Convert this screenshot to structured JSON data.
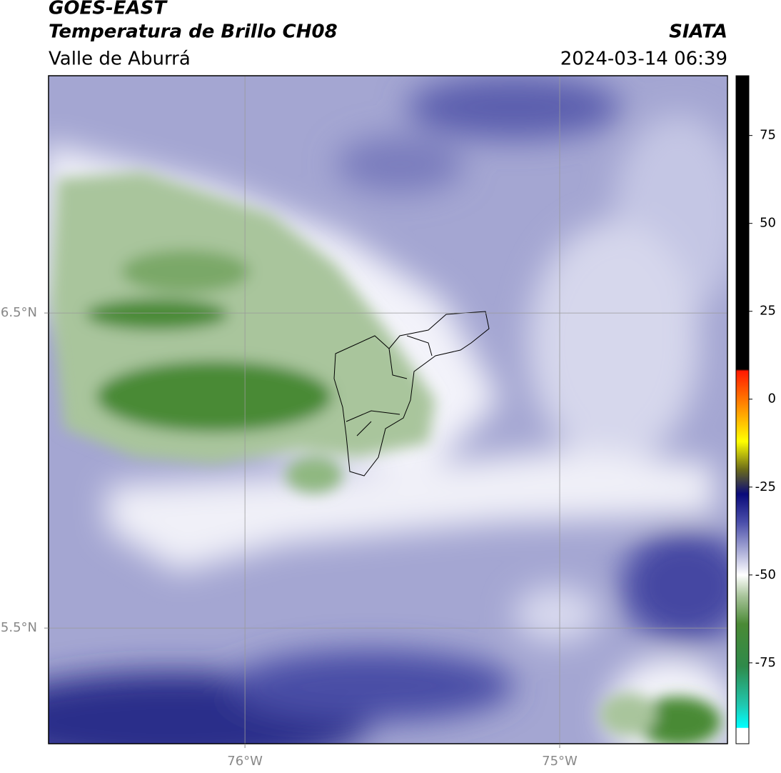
{
  "header": {
    "title": "GOES-EAST",
    "subtitle": "Temperatura de Brillo CH08",
    "region": "Valle de Aburrá",
    "source": "SIATA",
    "timestamp": "2024-03-14 06:39"
  },
  "map": {
    "xlim": [
      -76.624,
      -74.467
    ],
    "ylim": [
      5.133,
      7.253
    ],
    "xticks": [
      {
        "value": -76,
        "label": "76°W"
      },
      {
        "value": -75,
        "label": "75°W"
      }
    ],
    "yticks": [
      {
        "value": 6.5,
        "label": "6.5°N"
      },
      {
        "value": 5.5,
        "label": "5.5°N"
      }
    ],
    "grid": true
  },
  "colorbar": {
    "clim": [
      -98,
      92
    ],
    "ticks": [
      75,
      50,
      25,
      0,
      -25,
      -50,
      -75
    ],
    "colormap": [
      {
        "value": 92,
        "color": "#000000"
      },
      {
        "value": 8.5,
        "color": "#000000"
      },
      {
        "value": 8,
        "color": "#ff1a00"
      },
      {
        "value": -2,
        "color": "#ff8c00"
      },
      {
        "value": -12,
        "color": "#ffff00"
      },
      {
        "value": -20,
        "color": "#6b6b1a"
      },
      {
        "value": -27,
        "color": "#0a0a7a"
      },
      {
        "value": -35,
        "color": "#4a4eaa"
      },
      {
        "value": -44,
        "color": "#b4b6dc"
      },
      {
        "value": -50,
        "color": "#ffffff"
      },
      {
        "value": -56,
        "color": "#a8c49a"
      },
      {
        "value": -64,
        "color": "#4a8a35"
      },
      {
        "value": -76,
        "color": "#2f8a4a"
      },
      {
        "value": -87,
        "color": "#20c8b0"
      },
      {
        "value": -93.4,
        "color": "#00ffff"
      },
      {
        "value": -93.6,
        "color": "#ffffff"
      },
      {
        "value": -98,
        "color": "#ffffff"
      }
    ]
  }
}
